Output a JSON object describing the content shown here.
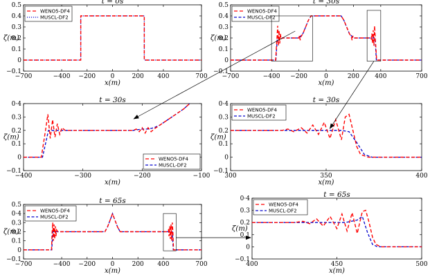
{
  "chart_data": [
    {
      "type": "line",
      "title": "t = 0s",
      "xlabel": "x(m)",
      "ylabel": "ζ(m)",
      "xlim": [
        -700,
        700
      ],
      "ylim": [
        -0.1,
        0.5
      ],
      "xticks": [
        -700,
        -400,
        -200,
        0,
        200,
        400,
        700
      ],
      "yticks": [
        -0.1,
        0,
        0.1,
        0.2,
        0.3,
        0.4,
        0.5
      ],
      "ytick_labels": [
        "−0.1",
        "0",
        "0.1",
        "0.2",
        "0.3",
        "0.4",
        "0.5"
      ],
      "legend": "top-left",
      "series": [
        {
          "name": "WENO5-DF4",
          "color": "#ff0000",
          "style": "dashed",
          "x": [
            -700,
            -250,
            -250,
            250,
            250,
            700
          ],
          "y": [
            0,
            0,
            0.4,
            0.4,
            0,
            0
          ]
        },
        {
          "name": "MUSCL-DF2",
          "color": "#0000cc",
          "style": "dotted",
          "x": [
            -700,
            -250,
            -250,
            250,
            250,
            700
          ],
          "y": [
            0,
            0,
            0.4,
            0.4,
            0,
            0
          ]
        }
      ]
    },
    {
      "type": "line",
      "title": "t = 30s",
      "xlabel": "x(m)",
      "ylabel": "ζ(m)",
      "xlim": [
        -700,
        700
      ],
      "ylim": [
        -0.1,
        0.5
      ],
      "xticks": [
        -700,
        -400,
        -200,
        0,
        200,
        400,
        700
      ],
      "yticks": [
        -0.1,
        0,
        0.1,
        0.2,
        0.3,
        0.4,
        0.5
      ],
      "ytick_labels": [
        "−0.1",
        "0",
        "0.1",
        "0.2",
        "0.3",
        "0.4",
        "0.5"
      ],
      "legend": "top-left",
      "series": [
        {
          "name": "WENO5-DF4",
          "color": "#ff0000",
          "style": "dashed",
          "x": [
            -700,
            -370,
            -360,
            -355,
            -350,
            -345,
            -340,
            -335,
            -330,
            -320,
            -250,
            -200,
            -195,
            -190,
            -185,
            -170,
            -130,
            -110,
            110,
            130,
            170,
            185,
            190,
            195,
            200,
            250,
            320,
            330,
            335,
            340,
            345,
            350,
            355,
            360,
            370,
            700
          ],
          "y": [
            0,
            0,
            0.2,
            0.31,
            0.13,
            0.27,
            0.15,
            0.24,
            0.19,
            0.2,
            0.2,
            0.2,
            0.22,
            0.18,
            0.21,
            0.24,
            0.36,
            0.4,
            0.4,
            0.36,
            0.24,
            0.21,
            0.18,
            0.22,
            0.2,
            0.2,
            0.2,
            0.19,
            0.24,
            0.15,
            0.27,
            0.13,
            0.31,
            0.2,
            0,
            0
          ]
        },
        {
          "name": "MUSCL-DF2",
          "color": "#0000cc",
          "style": "dashed",
          "x": [
            -700,
            -368,
            -358,
            -200,
            -170,
            -130,
            -110,
            110,
            130,
            170,
            200,
            358,
            368,
            700
          ],
          "y": [
            0,
            0,
            0.2,
            0.2,
            0.24,
            0.36,
            0.4,
            0.4,
            0.36,
            0.24,
            0.2,
            0.2,
            0,
            0
          ]
        }
      ]
    },
    {
      "type": "line",
      "title": "t = 30s",
      "xlabel": "x(m)",
      "ylabel": "ζ(m)",
      "xlim": [
        -400,
        -100
      ],
      "ylim": [
        -0.1,
        0.4
      ],
      "xticks": [
        -400,
        -300,
        -200,
        -100
      ],
      "yticks": [
        -0.1,
        0,
        0.1,
        0.2,
        0.3,
        0.4
      ],
      "ytick_labels": [
        "−0.1",
        "0",
        "0.1",
        "0.2",
        "0.3",
        "0·4"
      ],
      "legend": "bottom-right",
      "series": [
        {
          "name": "WENO5-DF4",
          "color": "#ff0000",
          "style": "dashed",
          "x": [
            -400,
            -370,
            -363,
            -359,
            -355,
            -351,
            -347,
            -343,
            -339,
            -335,
            -330,
            -320,
            -250,
            -215,
            -210,
            -205,
            -200,
            -195,
            -190,
            -185,
            -180,
            -170,
            -150,
            -130,
            -120
          ],
          "y": [
            0,
            0,
            0.2,
            0.32,
            0.14,
            0.28,
            0.15,
            0.25,
            0.17,
            0.22,
            0.2,
            0.2,
            0.2,
            0.2,
            0.21,
            0.19,
            0.22,
            0.18,
            0.22,
            0.19,
            0.21,
            0.24,
            0.3,
            0.36,
            0.4
          ]
        },
        {
          "name": "MUSCL-DF2",
          "color": "#0000cc",
          "style": "dashed",
          "x": [
            -400,
            -368,
            -358,
            -250,
            -215,
            -200,
            -190,
            -180,
            -170,
            -150,
            -130,
            -120
          ],
          "y": [
            0,
            0,
            0.2,
            0.2,
            0.2,
            0.21,
            0.21,
            0.22,
            0.24,
            0.3,
            0.36,
            0.4
          ]
        }
      ]
    },
    {
      "type": "line",
      "title": "t = 30s",
      "xlabel": "x(m)",
      "ylabel": "ζ(m)",
      "xlim": [
        300,
        400
      ],
      "ylim": [
        -0.1,
        0.4
      ],
      "xticks": [
        300,
        350,
        400
      ],
      "yticks": [
        -0.1,
        0,
        0.1,
        0.2,
        0.3,
        0.4
      ],
      "ytick_labels": [
        "−0.1",
        "0",
        "0.1",
        "0.2",
        "0.3",
        "0·4"
      ],
      "legend": "top-left",
      "series": [
        {
          "name": "WENO5-DF4",
          "color": "#ff0000",
          "style": "dashed",
          "x": [
            300,
            320,
            327,
            330,
            333,
            337,
            340,
            343,
            346,
            349,
            352,
            355,
            358,
            360,
            362,
            364,
            366,
            368,
            372,
            376,
            400
          ],
          "y": [
            0.2,
            0.2,
            0.2,
            0.21,
            0.19,
            0.22,
            0.18,
            0.24,
            0.17,
            0.26,
            0.14,
            0.28,
            0.13,
            0.3,
            0.32,
            0.2,
            0.08,
            0.02,
            0,
            0,
            0
          ]
        },
        {
          "name": "MUSCL-DF2",
          "color": "#0000cc",
          "style": "dashed",
          "x": [
            300,
            345,
            358,
            362,
            366,
            370,
            374,
            400
          ],
          "y": [
            0.2,
            0.2,
            0.2,
            0.19,
            0.11,
            0.02,
            0,
            0
          ]
        }
      ]
    },
    {
      "type": "line",
      "title": "t = 65s",
      "xlabel": "x(m)",
      "ylabel": "ζ(m)",
      "xlim": [
        -700,
        700
      ],
      "ylim": [
        -0.1,
        0.5
      ],
      "xticks": [
        -700,
        -400,
        -200,
        0,
        200,
        400,
        700
      ],
      "yticks": [
        -0.1,
        0,
        0.1,
        0.2,
        0.3,
        0.4,
        0.5
      ],
      "ytick_labels": [
        "−0.1",
        "0",
        "0.1",
        "0.2",
        "0.3",
        "0·4",
        "0.5"
      ],
      "legend": "top-left",
      "series": [
        {
          "name": "WENO5-DF4",
          "color": "#ff0000",
          "style": "dashed",
          "x": [
            -700,
            -480,
            -475,
            -470,
            -465,
            -460,
            -455,
            -450,
            -445,
            -440,
            -430,
            -400,
            -60,
            -40,
            -10,
            0,
            10,
            40,
            60,
            400,
            430,
            440,
            445,
            450,
            455,
            460,
            465,
            470,
            475,
            480,
            700
          ],
          "y": [
            0,
            0,
            0.2,
            0.3,
            0.1,
            0.28,
            0.12,
            0.26,
            0.15,
            0.22,
            0.2,
            0.2,
            0.2,
            0.25,
            0.36,
            0.4,
            0.36,
            0.25,
            0.2,
            0.2,
            0.2,
            0.22,
            0.15,
            0.26,
            0.12,
            0.28,
            0.1,
            0.3,
            0.2,
            0,
            0
          ]
        },
        {
          "name": "MUSCL-DF2",
          "color": "#0000cc",
          "style": "dashed",
          "x": [
            -700,
            -478,
            -470,
            -60,
            -40,
            -10,
            0,
            10,
            40,
            60,
            470,
            478,
            700
          ],
          "y": [
            0,
            0,
            0.2,
            0.2,
            0.25,
            0.36,
            0.4,
            0.36,
            0.25,
            0.2,
            0.2,
            0,
            0
          ]
        }
      ]
    },
    {
      "type": "line",
      "title": "t = 65s",
      "xlabel": "x(m)",
      "ylabel": "ζ(m)",
      "xlim": [
        400,
        500
      ],
      "ylim": [
        -0.1,
        0.4
      ],
      "xticks": [
        400,
        450,
        500
      ],
      "yticks": [
        -0.1,
        0,
        0.1,
        0.2,
        0.3,
        0.4
      ],
      "ytick_labels": [
        "−0.1",
        "0",
        "0.1",
        "0.2",
        "0.3",
        "0·4"
      ],
      "legend": "top-left",
      "series": [
        {
          "name": "WENO5-DF4",
          "color": "#ff0000",
          "style": "dashed",
          "x": [
            400,
            425,
            430,
            434,
            438,
            442,
            446,
            450,
            453,
            456,
            459,
            462,
            465,
            467,
            469,
            471,
            473,
            476,
            479,
            500
          ],
          "y": [
            0.2,
            0.2,
            0.21,
            0.19,
            0.23,
            0.17,
            0.25,
            0.15,
            0.27,
            0.13,
            0.28,
            0.11,
            0.29,
            0.3,
            0.2,
            0.08,
            0.02,
            0,
            0,
            0
          ]
        },
        {
          "name": "MUSCL-DF2",
          "color": "#0000cc",
          "style": "dashed",
          "x": [
            400,
            455,
            462,
            465,
            468,
            471,
            474,
            500
          ],
          "y": [
            0.2,
            0.2,
            0.22,
            0.25,
            0.12,
            0.02,
            0,
            0
          ]
        }
      ]
    }
  ]
}
